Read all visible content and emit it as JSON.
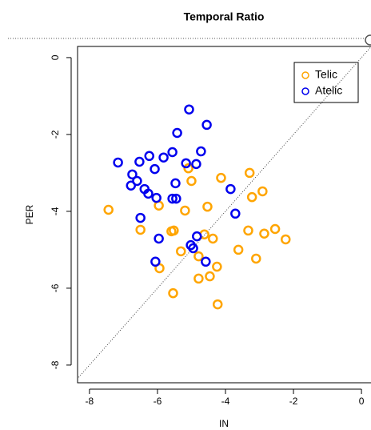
{
  "chart_data": {
    "type": "scatter",
    "title": "Temporal Ratio",
    "x_label": "IN",
    "y_label": "PER",
    "xlim": [
      -8.35,
      0.28
    ],
    "ylim": [
      -8.46,
      0.29
    ],
    "xticks": [
      -8,
      -6,
      -4,
      -2,
      0
    ],
    "yticks": [
      0,
      -2,
      -4,
      -6,
      -8
    ],
    "legend_position": "top-right",
    "series": [
      {
        "name": "Telic",
        "color": "#ffa500",
        "x": [
          -7.44,
          -5.96,
          -5.19,
          -6.5,
          -5.52,
          -5.59,
          -4.53,
          -4.13,
          -3.29,
          -3.22,
          -2.91,
          -5.0,
          -5.09,
          -4.62,
          -4.37,
          -3.33,
          -3.62,
          -5.31,
          -4.79,
          -2.54,
          -2.86,
          -2.23,
          -3.1,
          -4.25,
          -5.94,
          -4.79,
          -4.46,
          -5.54,
          -4.23
        ],
        "values": [
          -3.96,
          -3.85,
          -3.98,
          -4.48,
          -4.5,
          -4.52,
          -3.88,
          -3.13,
          -3.0,
          -3.63,
          -3.48,
          -3.21,
          -2.88,
          -4.6,
          -4.71,
          -4.5,
          -5.0,
          -5.04,
          -5.17,
          -4.46,
          -4.58,
          -4.73,
          -5.23,
          -5.44,
          -5.48,
          -5.75,
          -5.69,
          -6.13,
          -6.42
        ]
      },
      {
        "name": "Atelic",
        "color": "#0000ee",
        "x": [
          -5.07,
          -5.42,
          -4.55,
          -4.72,
          -5.56,
          -5.16,
          -4.86,
          -7.16,
          -6.24,
          -6.53,
          -5.82,
          -6.08,
          -6.74,
          -6.6,
          -6.78,
          -6.38,
          -6.27,
          -6.03,
          -5.47,
          -5.56,
          -5.45,
          -3.85,
          -3.71,
          -6.5,
          -4.84,
          -5.96,
          -5.02,
          -4.95,
          -4.58,
          -6.06
        ],
        "values": [
          -1.35,
          -1.96,
          -1.75,
          -2.44,
          -2.46,
          -2.75,
          -2.77,
          -2.73,
          -2.56,
          -2.71,
          -2.6,
          -2.9,
          -3.04,
          -3.21,
          -3.33,
          -3.42,
          -3.54,
          -3.65,
          -3.27,
          -3.67,
          -3.67,
          -3.42,
          -4.06,
          -4.17,
          -4.65,
          -4.71,
          -4.88,
          -4.96,
          -5.31,
          -5.31
        ]
      }
    ]
  }
}
